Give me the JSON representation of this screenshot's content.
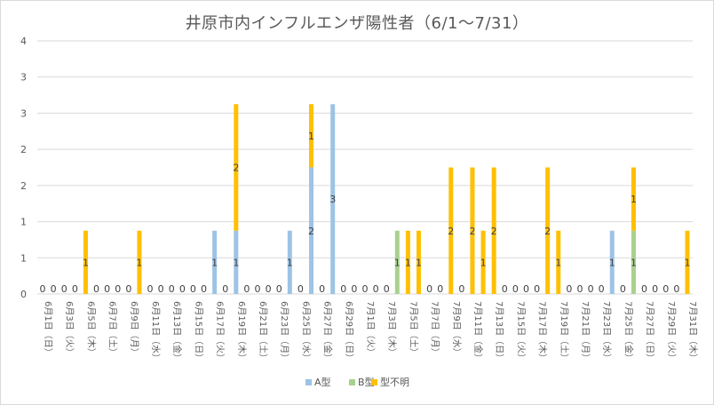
{
  "chart_data": {
    "type": "bar",
    "stacked": true,
    "title": "井原市内インフルエンザ陽性者（6/1～7/31）",
    "xlabel": "",
    "ylabel": "",
    "ylim": [
      0,
      4
    ],
    "y_tick_labels": [
      "0",
      "1",
      "1",
      "2",
      "2",
      "3",
      "3",
      "4"
    ],
    "grid": true,
    "legend_position": "bottom",
    "categories": [
      "6月1日（日）",
      "6月2日（月）",
      "6月3日（火）",
      "6月4日（水）",
      "6月5日（木）",
      "6月6日（金）",
      "6月7日（土）",
      "6月8日（日）",
      "6月9日（月）",
      "6月10日（火）",
      "6月11日（水）",
      "6月12日（木）",
      "6月13日（金）",
      "6月14日（土）",
      "6月15日（日）",
      "6月16日（月）",
      "6月17日（火）",
      "6月18日（水）",
      "6月19日（木）",
      "6月20日（金）",
      "6月21日（土）",
      "6月22日（日）",
      "6月23日（月）",
      "6月24日（火）",
      "6月25日（水）",
      "6月26日（木）",
      "6月27日（金）",
      "6月28日（土）",
      "6月29日（日）",
      "6月30日（月）",
      "7月1日（火）",
      "7月2日（水）",
      "7月3日（木）",
      "7月4日（金）",
      "7月5日（土）",
      "7月6日（日）",
      "7月7日（月）",
      "7月8日（火）",
      "7月9日（水）",
      "7月10日（木）",
      "7月11日（金）",
      "7月12日（土）",
      "7月13日（日）",
      "7月14日（月）",
      "7月15日（火）",
      "7月16日（水）",
      "7月17日（木）",
      "7月18日（金）",
      "7月19日（土）",
      "7月20日（日）",
      "7月21日（月）",
      "7月22日（火）",
      "7月23日（水）",
      "7月24日（木）",
      "7月25日（金）",
      "7月26日（土）",
      "7月27日（日）",
      "7月28日（月）",
      "7月29日（火）",
      "7月30日（水）",
      "7月31日（木）"
    ],
    "series": [
      {
        "name": "A型",
        "color": "#9dc3e6",
        "values": [
          0,
          0,
          0,
          0,
          0,
          0,
          0,
          0,
          0,
          0,
          0,
          0,
          0,
          0,
          0,
          0,
          1,
          0,
          1,
          0,
          0,
          0,
          0,
          1,
          0,
          2,
          0,
          3,
          0,
          0,
          0,
          0,
          0,
          0,
          0,
          0,
          0,
          0,
          0,
          0,
          0,
          0,
          0,
          0,
          0,
          0,
          0,
          0,
          0,
          0,
          0,
          0,
          0,
          1,
          0,
          0,
          0,
          0,
          0,
          0,
          0
        ]
      },
      {
        "name": "B型",
        "color": "#a9d18e",
        "values": [
          0,
          0,
          0,
          0,
          0,
          0,
          0,
          0,
          0,
          0,
          0,
          0,
          0,
          0,
          0,
          0,
          0,
          0,
          0,
          0,
          0,
          0,
          0,
          0,
          0,
          0,
          0,
          0,
          0,
          0,
          0,
          0,
          0,
          1,
          0,
          0,
          0,
          0,
          0,
          0,
          0,
          0,
          0,
          0,
          0,
          0,
          0,
          0,
          0,
          0,
          0,
          0,
          0,
          0,
          0,
          1,
          0,
          0,
          0,
          0,
          0
        ]
      },
      {
        "name": "型不明",
        "color": "#ffc000",
        "values": [
          0,
          0,
          0,
          0,
          1,
          0,
          0,
          0,
          0,
          1,
          0,
          0,
          0,
          0,
          0,
          0,
          0,
          0,
          2,
          0,
          0,
          0,
          0,
          0,
          0,
          1,
          0,
          0,
          0,
          0,
          0,
          0,
          0,
          0,
          1,
          1,
          0,
          0,
          2,
          0,
          2,
          1,
          2,
          0,
          0,
          0,
          0,
          2,
          1,
          0,
          0,
          0,
          0,
          0,
          0,
          1,
          0,
          0,
          0,
          0,
          1
        ]
      }
    ]
  }
}
